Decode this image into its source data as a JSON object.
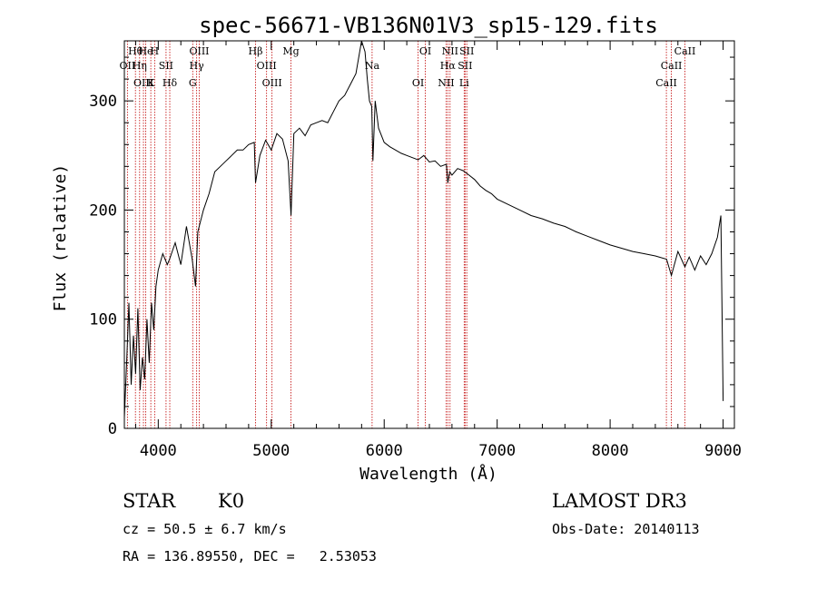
{
  "chart_data": {
    "type": "line",
    "title": "spec-56671-VB136N01V3_sp15-129.fits",
    "xlabel": "Wavelength (Å)",
    "ylabel": "Flux (relative)",
    "xlim": [
      3700,
      9100
    ],
    "ylim": [
      0,
      355
    ],
    "x_ticks": [
      4000,
      5000,
      6000,
      7000,
      8000,
      9000
    ],
    "y_ticks": [
      0,
      100,
      200,
      300
    ],
    "series": [
      {
        "name": "flux",
        "x": [
          3700,
          3720,
          3740,
          3760,
          3780,
          3800,
          3820,
          3840,
          3860,
          3880,
          3900,
          3920,
          3940,
          3960,
          3980,
          4000,
          4040,
          4080,
          4100,
          4150,
          4200,
          4250,
          4300,
          4330,
          4350,
          4400,
          4450,
          4500,
          4550,
          4600,
          4650,
          4700,
          4750,
          4800,
          4850,
          4861,
          4900,
          4950,
          5000,
          5050,
          5100,
          5150,
          5175,
          5200,
          5250,
          5300,
          5350,
          5400,
          5450,
          5500,
          5550,
          5600,
          5650,
          5700,
          5750,
          5800,
          5830,
          5850,
          5870,
          5890,
          5900,
          5920,
          5950,
          6000,
          6050,
          6100,
          6150,
          6200,
          6250,
          6300,
          6350,
          6400,
          6450,
          6500,
          6550,
          6563,
          6580,
          6600,
          6650,
          6700,
          6750,
          6800,
          6850,
          6900,
          6950,
          7000,
          7100,
          7200,
          7300,
          7400,
          7500,
          7600,
          7700,
          7800,
          7900,
          8000,
          8100,
          8200,
          8300,
          8400,
          8500,
          8542,
          8600,
          8662,
          8700,
          8750,
          8800,
          8850,
          8900,
          8950,
          8980,
          9000
        ],
        "y": [
          10,
          60,
          115,
          40,
          85,
          50,
          110,
          35,
          65,
          45,
          100,
          60,
          115,
          90,
          130,
          145,
          160,
          150,
          155,
          170,
          150,
          185,
          155,
          130,
          180,
          200,
          215,
          235,
          240,
          245,
          250,
          255,
          255,
          260,
          262,
          225,
          250,
          264,
          255,
          270,
          265,
          245,
          195,
          270,
          275,
          268,
          278,
          280,
          282,
          280,
          290,
          300,
          305,
          315,
          325,
          355,
          345,
          320,
          300,
          295,
          245,
          300,
          275,
          262,
          258,
          255,
          252,
          250,
          248,
          246,
          250,
          244,
          245,
          240,
          242,
          225,
          235,
          232,
          238,
          236,
          232,
          228,
          222,
          218,
          215,
          210,
          205,
          200,
          195,
          192,
          188,
          185,
          180,
          176,
          172,
          168,
          165,
          162,
          160,
          158,
          155,
          140,
          162,
          148,
          157,
          145,
          158,
          150,
          160,
          175,
          195,
          25
        ]
      }
    ],
    "line_markers": [
      {
        "label": "Hθ",
        "x": 3798
      },
      {
        "label": "OII",
        "x": 3727
      },
      {
        "label": "OIII",
        "x": 3869
      },
      {
        "label": "He",
        "x": 3889
      },
      {
        "label": "Hη",
        "x": 3835
      },
      {
        "label": "K",
        "x": 3934
      },
      {
        "label": "H",
        "x": 3968
      },
      {
        "label": "SII",
        "x": 4069
      },
      {
        "label": "Hδ",
        "x": 4102
      },
      {
        "label": "OIII",
        "x": 4363
      },
      {
        "label": "Hγ",
        "x": 4340
      },
      {
        "label": "G",
        "x": 4305
      },
      {
        "label": "Hβ",
        "x": 4861
      },
      {
        "label": "OIII",
        "x": 4959
      },
      {
        "label": "OIII",
        "x": 5007
      },
      {
        "label": "Mg",
        "x": 5175
      },
      {
        "label": "Na",
        "x": 5893
      },
      {
        "label": "OI",
        "x": 6300
      },
      {
        "label": "OI",
        "x": 6364
      },
      {
        "label": "Hα",
        "x": 6563
      },
      {
        "label": "NII",
        "x": 6548
      },
      {
        "label": "NII",
        "x": 6583
      },
      {
        "label": "SII",
        "x": 6716
      },
      {
        "label": "Li",
        "x": 6708
      },
      {
        "label": "SII",
        "x": 6731
      },
      {
        "label": "CaII",
        "x": 8542
      },
      {
        "label": "CaII",
        "x": 8498
      },
      {
        "label": "CaII",
        "x": 8662
      }
    ],
    "colors": {
      "marker_line": "#c00000",
      "spectrum": "#000000",
      "axis": "#000000"
    }
  },
  "info": {
    "object_class": "STAR",
    "subclass": "K0",
    "survey": "LAMOST DR3",
    "redshift_text": "cz = 50.5 ± 6.7 km/s",
    "obs_date_text": "Obs-Date: 20140113",
    "coords_text": "RA = 136.89550, DEC =   2.53053"
  }
}
